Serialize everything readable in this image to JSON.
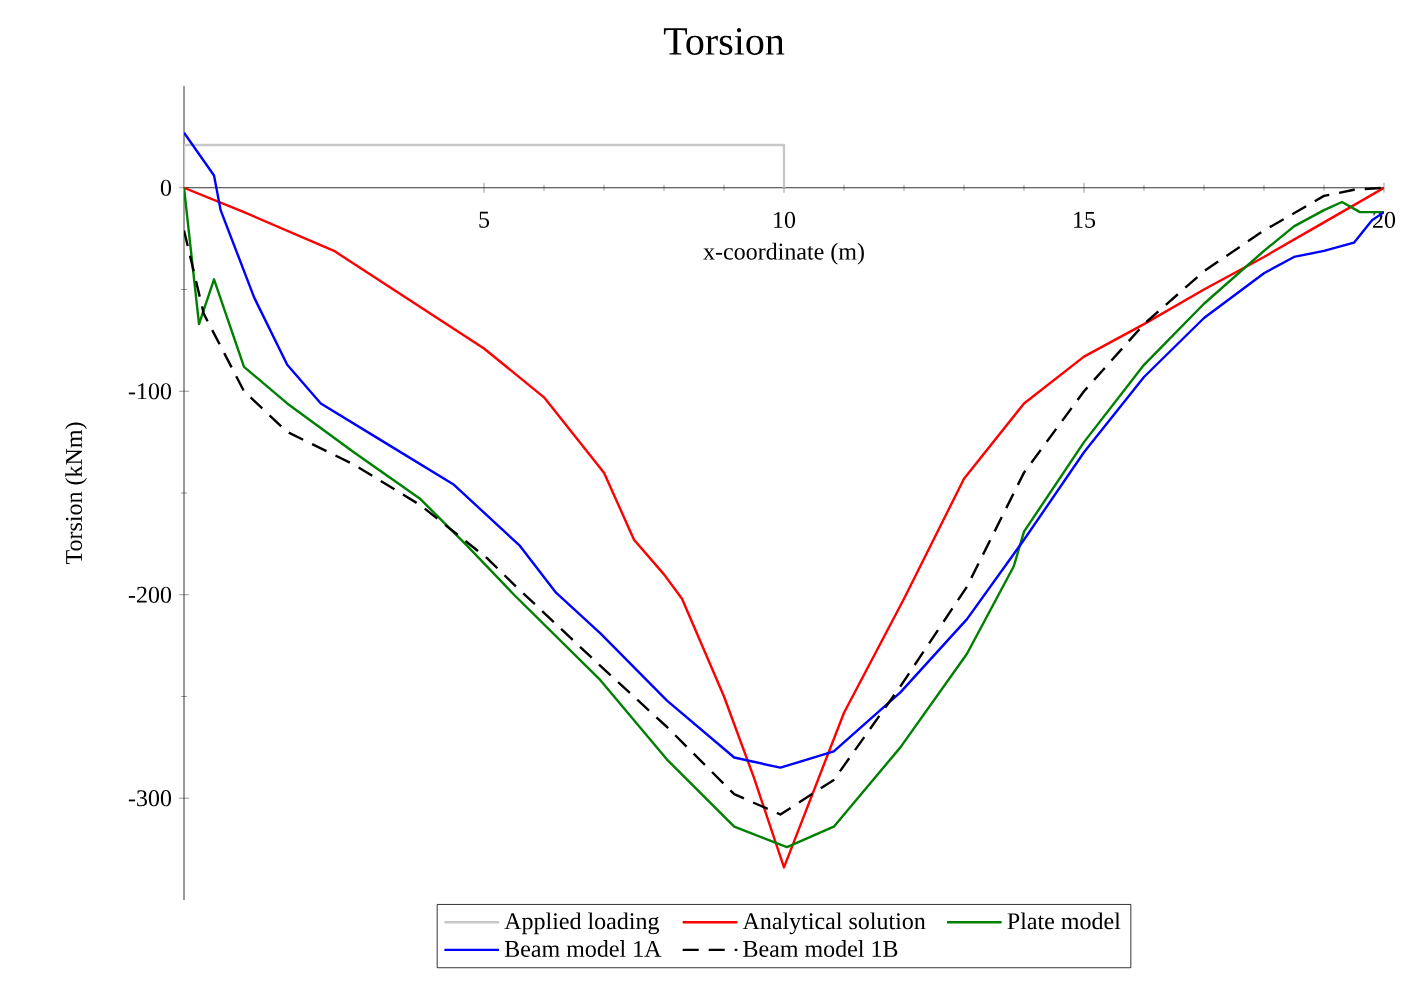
{
  "chart_data": {
    "type": "line",
    "title": "Torsion",
    "xlabel": "x-coordinate (m)",
    "ylabel": "Torsion (kNm)",
    "xlim": [
      0,
      20
    ],
    "ylim": [
      -350,
      50
    ],
    "xticks": [
      5,
      10,
      15,
      20
    ],
    "yticks": [
      0,
      -100,
      -200,
      -300
    ],
    "legend": "bottom",
    "series": [
      {
        "name": "Applied loading",
        "color": "#c8c8c8",
        "line_style": "solid",
        "x": [
          0,
          0,
          10,
          10
        ],
        "values": [
          0,
          21,
          21,
          0
        ]
      },
      {
        "name": "Analytical solution",
        "color": "#ff0000",
        "line_style": "solid",
        "x": [
          0,
          1,
          2.5,
          5,
          6,
          7,
          7.5,
          8,
          8.3,
          9,
          9.5,
          10,
          11,
          12,
          13,
          14,
          15,
          16,
          17,
          18,
          19,
          20
        ],
        "values": [
          0,
          -12,
          -31,
          -79,
          -103,
          -140,
          -173,
          -190,
          -202,
          -250,
          -290,
          -334,
          -258,
          -202,
          -143,
          -106,
          -83,
          -67,
          -50,
          -34,
          -17,
          0
        ]
      },
      {
        "name": "Plate model",
        "color": "#008000",
        "line_style": "solid",
        "x": [
          0,
          0.25,
          0.5,
          1,
          1.72,
          2.83,
          3.94,
          4.72,
          5.5,
          6.94,
          8.05,
          9.17,
          10.05,
          10.83,
          11.94,
          13.05,
          13.83,
          14,
          15,
          16,
          17,
          18,
          18.5,
          19,
          19.3,
          19.6,
          20
        ],
        "values": [
          0,
          -67,
          -45,
          -88,
          -106,
          -130,
          -153,
          -176,
          -200,
          -242,
          -281,
          -314,
          -324,
          -314,
          -275,
          -229,
          -186,
          -169,
          -125,
          -87,
          -57,
          -31,
          -19,
          -11,
          -7,
          -12,
          -12
        ]
      },
      {
        "name": "Beam model 1A",
        "color": "#0000ff",
        "line_style": "solid",
        "x": [
          0,
          0.5,
          0.61,
          1.17,
          1.72,
          2.28,
          3.39,
          4.5,
          5.6,
          6.2,
          6.94,
          8.05,
          9.17,
          9.94,
          10.83,
          11.94,
          13.05,
          14,
          15,
          16,
          17,
          18,
          18.5,
          19,
          19.5,
          19.8,
          20
        ],
        "values": [
          27,
          6,
          -11,
          -54,
          -87,
          -106,
          -126,
          -146,
          -176,
          -199,
          -219,
          -252,
          -280,
          -285,
          -277,
          -248,
          -212,
          -173,
          -130,
          -93,
          -64,
          -42,
          -34,
          -31,
          -27,
          -16,
          -12
        ]
      },
      {
        "name": "Beam model 1B",
        "color": "#000000",
        "line_style": "dashed",
        "x": [
          0,
          0.33,
          1,
          1.72,
          2.83,
          3.94,
          5.05,
          5.5,
          6.94,
          8.05,
          9.17,
          9.94,
          10.83,
          11.94,
          13.05,
          14,
          15,
          16,
          17,
          18,
          19,
          19.5,
          20
        ],
        "values": [
          -21,
          -62,
          -100,
          -120,
          -136,
          -156,
          -182,
          -195,
          -235,
          -265,
          -298,
          -308,
          -291,
          -245,
          -196,
          -140,
          -100,
          -67,
          -41,
          -21,
          -4,
          -1,
          0
        ]
      }
    ]
  }
}
